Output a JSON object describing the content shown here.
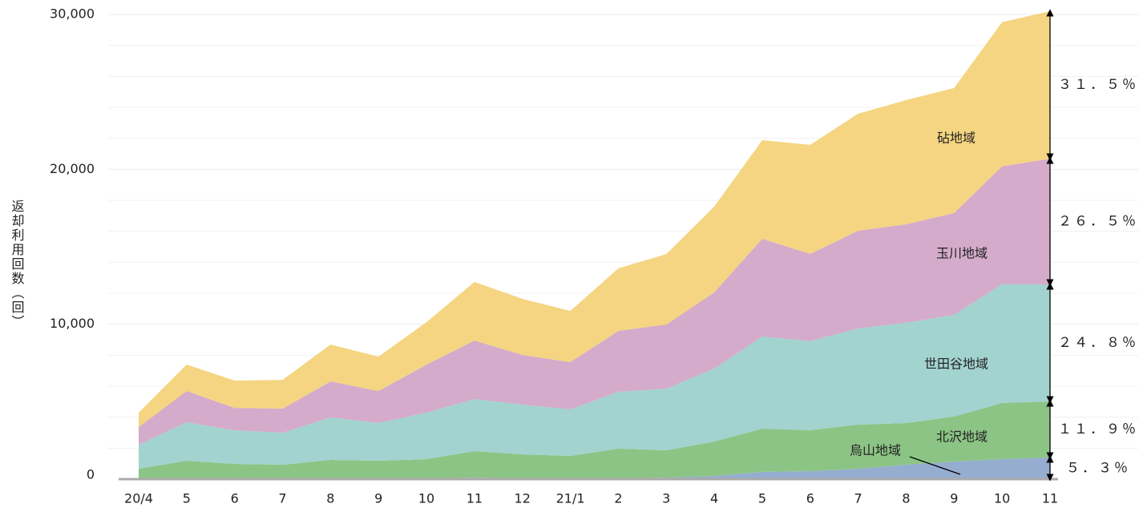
{
  "chart_data": {
    "type": "stacked_area",
    "y_label": "返却利用回数（回）",
    "categories": [
      "20/4",
      "5",
      "6",
      "7",
      "8",
      "9",
      "10",
      "11",
      "12",
      "21/1",
      "2",
      "3",
      "4",
      "5",
      "6",
      "7",
      "8",
      "9",
      "10",
      "11"
    ],
    "series": [
      {
        "name": "烏山地域",
        "color": "#8fa9cc",
        "values": [
          50,
          50,
          50,
          50,
          50,
          50,
          50,
          100,
          50,
          50,
          50,
          100,
          200,
          470,
          520,
          670,
          930,
          1140,
          1290,
          1400
        ]
      },
      {
        "name": "北沢地域",
        "color": "#86c17e",
        "values": [
          620,
          1140,
          930,
          880,
          1190,
          1140,
          1240,
          1710,
          1550,
          1450,
          1920,
          1760,
          2230,
          2790,
          2640,
          2850,
          2690,
          2900,
          3630,
          3620
        ]
      },
      {
        "name": "世田谷地域",
        "color": "#9dd1cc",
        "values": [
          1550,
          2480,
          2170,
          2070,
          2740,
          2430,
          3000,
          3360,
          3210,
          3000,
          3670,
          3980,
          4710,
          5950,
          5740,
          6210,
          6470,
          6570,
          7660,
          7550
        ]
      },
      {
        "name": "玉川地域",
        "color": "#d2a7c8",
        "values": [
          1140,
          2020,
          1450,
          1550,
          2330,
          2070,
          3100,
          3780,
          3210,
          3050,
          3930,
          4140,
          4920,
          6310,
          5640,
          6310,
          6360,
          6570,
          7610,
          8120
        ]
      },
      {
        "name": "砧地域",
        "color": "#f4d37a",
        "values": [
          930,
          1710,
          1760,
          1860,
          2380,
          2220,
          2740,
          3780,
          3620,
          3310,
          4040,
          4550,
          5540,
          6360,
          7040,
          7550,
          8020,
          8070,
          9310,
          9520
        ]
      }
    ],
    "share_labels": [
      "５．３％",
      "１１．９％",
      "２４．８％",
      "２６．５％",
      "３１．５％"
    ],
    "ylim": [
      0,
      30500
    ],
    "yticks": [
      0,
      {
        "value": 10000,
        "label": "10,000"
      },
      {
        "value": 20000,
        "label": "20,000"
      },
      {
        "value": 30000,
        "label": "30,000"
      }
    ],
    "grid_minor": [
      2000,
      4000,
      6000,
      8000,
      12000,
      14000,
      16000,
      18000,
      22000,
      24000,
      26000,
      28000
    ],
    "grid": true
  }
}
